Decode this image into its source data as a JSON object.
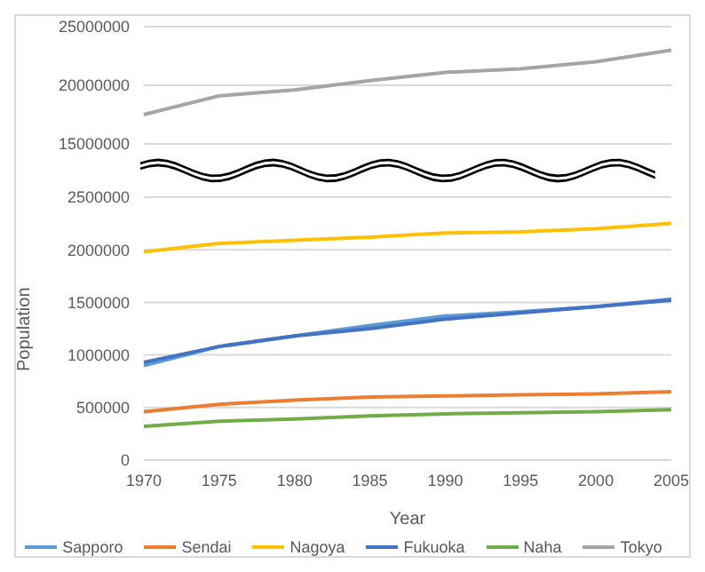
{
  "chart_data": [
    {
      "type": "line",
      "categories": [
        "1970",
        "1975",
        "1980",
        "1985",
        "1990",
        "1995",
        "2000",
        "2005"
      ],
      "ylim": [
        15000000,
        25000000
      ],
      "yticks": [
        15000000,
        20000000,
        25000000
      ],
      "grid": "y",
      "tick_labels": "y",
      "legend": false,
      "series": [
        {
          "name": "Tokyo",
          "color": "#a5a5a5",
          "values": [
            17500000,
            19100000,
            19600000,
            20400000,
            21100000,
            21400000,
            22000000,
            23000000
          ]
        }
      ]
    },
    {
      "type": "line",
      "xlabel": "Year",
      "ylabel": "Population",
      "categories": [
        "1970",
        "1975",
        "1980",
        "1985",
        "1990",
        "1995",
        "2000",
        "2005"
      ],
      "ylim": [
        0,
        2500000
      ],
      "yticks": [
        0,
        500000,
        1000000,
        1500000,
        2000000,
        2500000
      ],
      "grid": "y",
      "legend": "bottom",
      "series": [
        {
          "name": "Sapporo",
          "color": "#5b9bd5",
          "values": [
            900000,
            1080000,
            1180000,
            1280000,
            1370000,
            1410000,
            1460000,
            1530000
          ]
        },
        {
          "name": "Sendai",
          "color": "#ed7d31",
          "values": [
            460000,
            530000,
            570000,
            600000,
            610000,
            620000,
            630000,
            650000
          ]
        },
        {
          "name": "Nagoya",
          "color": "#ffc000",
          "values": [
            1980000,
            2060000,
            2090000,
            2120000,
            2160000,
            2170000,
            2200000,
            2250000
          ]
        },
        {
          "name": "Fukuoka",
          "color": "#4472c4",
          "values": [
            930000,
            1080000,
            1180000,
            1250000,
            1340000,
            1400000,
            1460000,
            1520000
          ]
        },
        {
          "name": "Naha",
          "color": "#70ad47",
          "values": [
            320000,
            370000,
            390000,
            420000,
            440000,
            450000,
            460000,
            480000
          ]
        }
      ]
    }
  ]
}
